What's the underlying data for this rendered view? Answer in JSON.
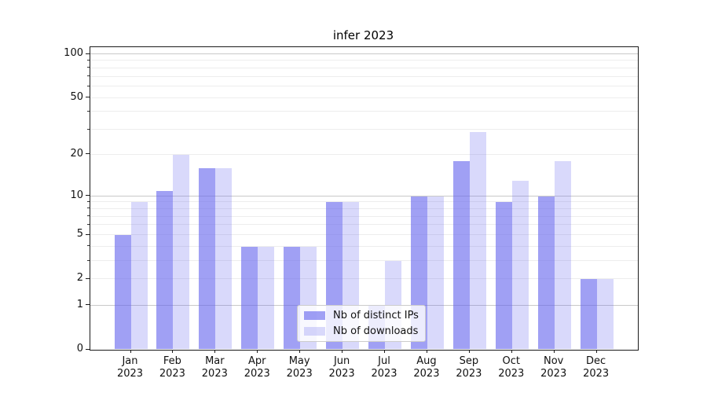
{
  "chart_data": {
    "type": "bar",
    "title": "infer 2023",
    "categories": [
      "Jan",
      "Feb",
      "Mar",
      "Apr",
      "May",
      "Jun",
      "Jul",
      "Aug",
      "Sep",
      "Oct",
      "Nov",
      "Dec"
    ],
    "category_year": "2023",
    "series": [
      {
        "name": "Nb of distinct IPs",
        "values": [
          5,
          11,
          16,
          4,
          4,
          9,
          1,
          10,
          18,
          9,
          10,
          2
        ],
        "color": "#6666ee",
        "alpha": 0.62
      },
      {
        "name": "Nb of downloads",
        "values": [
          9,
          20,
          16,
          4,
          4,
          9,
          3,
          10,
          29,
          13,
          18,
          2
        ],
        "color": "#6666ee",
        "alpha": 0.25
      }
    ],
    "yscale": "log10(1+x)",
    "ylim": [
      0,
      110
    ],
    "y_tick_values": [
      0,
      1,
      2,
      5,
      10,
      20,
      50,
      100
    ],
    "y_major_gridlines": [
      1,
      10,
      100
    ],
    "y_minor_gridlines": [
      2,
      3,
      4,
      5,
      6,
      7,
      8,
      9,
      20,
      30,
      40,
      50,
      60,
      70,
      80,
      90
    ],
    "grid": true,
    "legend_position": "lower center",
    "colors": {
      "bar_base": "#6666ee",
      "grid_major": "#c9c9c9",
      "grid_minor": "#ededed",
      "spine": "#1a1a1a",
      "text": "#111111",
      "background": "#ffffff"
    }
  }
}
